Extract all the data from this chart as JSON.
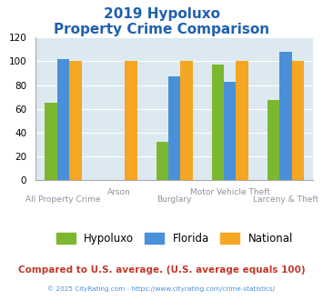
{
  "title_line1": "2019 Hypoluxo",
  "title_line2": "Property Crime Comparison",
  "title_color": "#2060b0",
  "categories": [
    "All Property Crime",
    "Arson",
    "Burglary",
    "Motor Vehicle Theft",
    "Larceny & Theft"
  ],
  "hypoluxo": [
    65,
    0,
    32,
    97,
    67
  ],
  "florida": [
    102,
    0,
    87,
    83,
    108
  ],
  "national": [
    100,
    100,
    100,
    100,
    100
  ],
  "hypoluxo_color": "#7cb82f",
  "florida_color": "#4a90d9",
  "national_color": "#f5a623",
  "ylim": [
    0,
    120
  ],
  "yticks": [
    0,
    20,
    40,
    60,
    80,
    100,
    120
  ],
  "background_color": "#dce9f0",
  "footer_text": "Compared to U.S. average. (U.S. average equals 100)",
  "footer_color": "#c0392b",
  "copyright_text": "© 2025 CityRating.com - https://www.cityrating.com/crime-statistics/",
  "copyright_color": "#4a90d9",
  "bar_width": 0.22,
  "xlabel_fontsize": 6.5,
  "ylabel_fontsize": 7.5,
  "legend_fontsize": 8.5,
  "title_fontsize_1": 11,
  "title_fontsize_2": 11
}
